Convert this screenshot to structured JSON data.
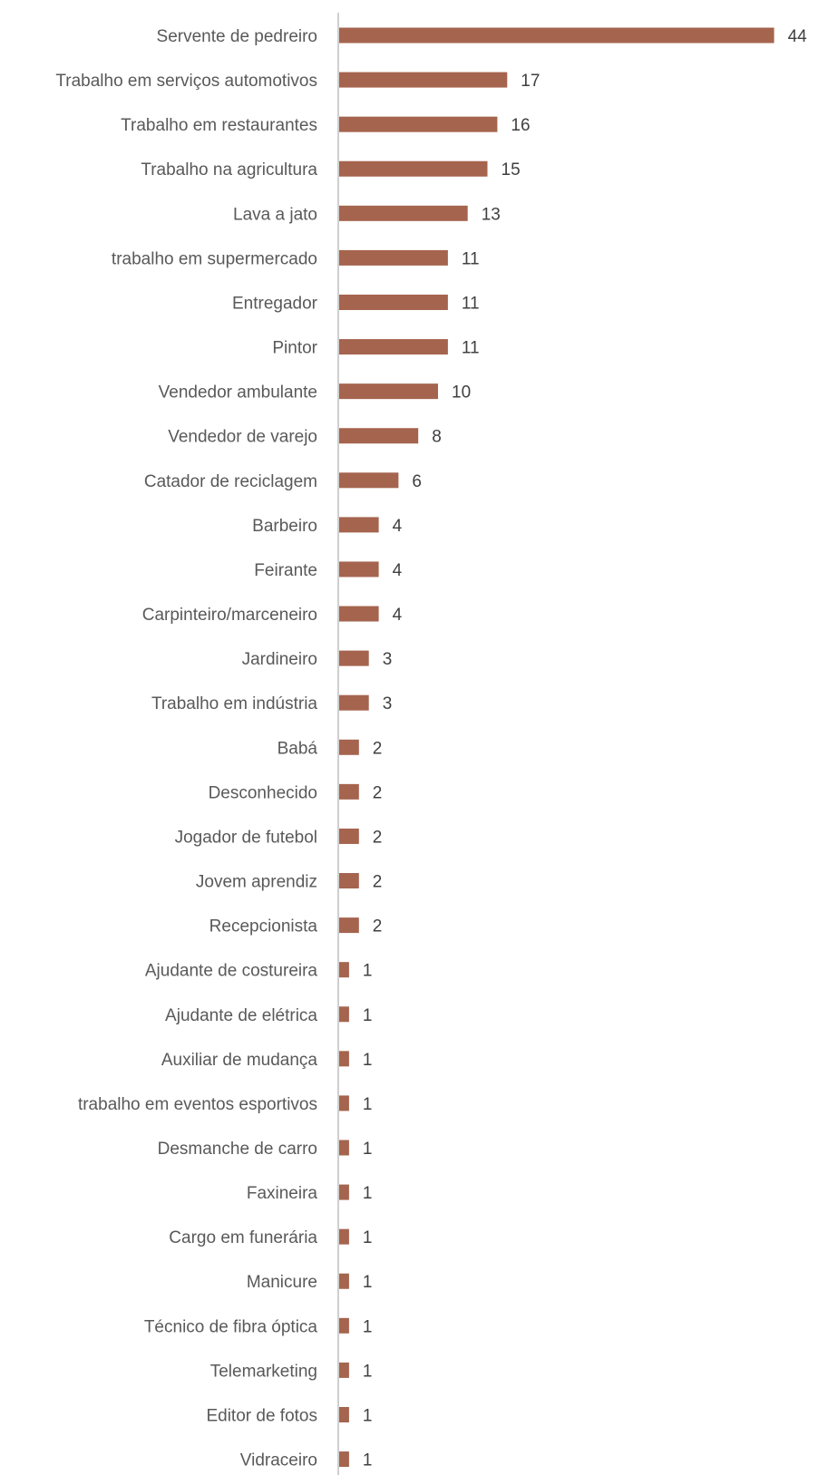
{
  "chart_data": {
    "type": "bar",
    "orientation": "horizontal",
    "title": "",
    "xlabel": "",
    "ylabel": "",
    "xlim": [
      0,
      44
    ],
    "grid": false,
    "legend": "none",
    "bar_color": "#A5644E",
    "data_labels": true,
    "categories": [
      "Servente de pedreiro",
      "Trabalho em serviços automotivos",
      "Trabalho em restaurantes",
      "Trabalho na agricultura",
      "Lava a jato",
      "trabalho em supermercado",
      "Entregador",
      "Pintor",
      "Vendedor ambulante",
      "Vendedor de varejo",
      "Catador de reciclagem",
      "Barbeiro",
      "Feirante",
      "Carpinteiro/marceneiro",
      "Jardineiro",
      "Trabalho em indústria",
      "Babá",
      "Desconhecido",
      "Jogador de futebol",
      "Jovem aprendiz",
      "Recepcionista",
      "Ajudante de costureira",
      "Ajudante de elétrica",
      "Auxiliar de mudança",
      "trabalho em eventos esportivos",
      "Desmanche de carro",
      "Faxineira",
      "Cargo em funerária",
      "Manicure",
      "Técnico de fibra óptica",
      "Telemarketing",
      "Editor de fotos",
      "Vidraceiro"
    ],
    "values": [
      44,
      17,
      16,
      15,
      13,
      11,
      11,
      11,
      10,
      8,
      6,
      4,
      4,
      4,
      3,
      3,
      2,
      2,
      2,
      2,
      2,
      1,
      1,
      1,
      1,
      1,
      1,
      1,
      1,
      1,
      1,
      1,
      1
    ]
  }
}
